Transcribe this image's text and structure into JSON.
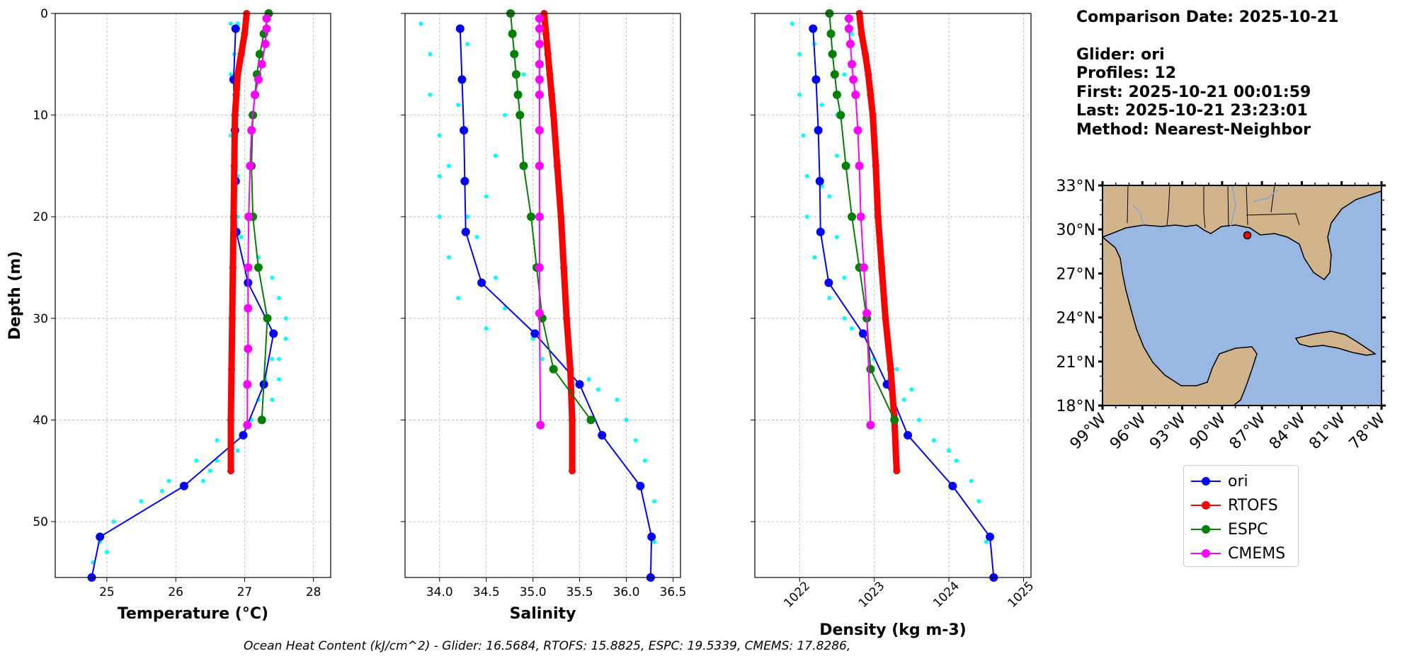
{
  "info": {
    "comparison_date": "Comparison Date: 2025-10-21",
    "glider": "Glider: ori",
    "profiles": "Profiles: 12",
    "first": "First: 2025-10-21 00:01:59",
    "last": "Last: 2025-10-21 23:23:01",
    "method": "Method: Nearest-Neighbor"
  },
  "footer_text": "Ocean Heat Content (kJ/cm^2) - Glider: 16.5684,  RTOFS: 15.8825,  ESPC: 19.5339,  CMEMS: 17.8286,",
  "colors": {
    "ori": "#0000ff",
    "RTOFS": "#ff0000",
    "ESPC": "#008000",
    "CMEMS": "#ff00ff",
    "raw": "#00ffff",
    "land": "#d2b48c",
    "ocean": "#98b7e2"
  },
  "legend": [
    {
      "name": "ori",
      "color": "#0000ff"
    },
    {
      "name": "RTOFS",
      "color": "#ff0000"
    },
    {
      "name": "ESPC",
      "color": "#008000"
    },
    {
      "name": "CMEMS",
      "color": "#ff00ff"
    }
  ],
  "chart_data": [
    {
      "type": "line",
      "xlabel": "Temperature (°C)",
      "ylabel": "Depth (m)",
      "xlim": [
        24.25,
        28.25
      ],
      "ylim": [
        55.5,
        0
      ],
      "xticks": [
        25,
        26,
        27,
        28
      ],
      "yticks": [
        0,
        10,
        20,
        30,
        40,
        50
      ],
      "grid": true,
      "raw_cloud": {
        "name": "raw glider profiles",
        "color": "#00ffff",
        "points": [
          [
            26.9,
            1
          ],
          [
            26.8,
            1
          ],
          [
            27.0,
            2
          ],
          [
            26.85,
            4
          ],
          [
            26.8,
            6
          ],
          [
            26.85,
            8
          ],
          [
            26.9,
            10
          ],
          [
            26.8,
            12
          ],
          [
            26.85,
            14
          ],
          [
            26.9,
            16
          ],
          [
            26.85,
            18
          ],
          [
            26.9,
            20
          ],
          [
            26.95,
            22
          ],
          [
            27.2,
            24
          ],
          [
            27.4,
            26
          ],
          [
            27.5,
            28
          ],
          [
            27.6,
            30
          ],
          [
            27.6,
            32
          ],
          [
            27.5,
            34
          ],
          [
            27.5,
            36
          ],
          [
            27.4,
            38
          ],
          [
            27.1,
            40
          ],
          [
            26.6,
            42
          ],
          [
            26.3,
            44
          ],
          [
            25.9,
            46
          ],
          [
            25.5,
            48
          ],
          [
            25.1,
            50
          ],
          [
            24.9,
            52
          ],
          [
            24.8,
            54
          ],
          [
            26.8,
            40
          ],
          [
            26.6,
            44
          ],
          [
            26.4,
            46
          ],
          [
            27.3,
            36
          ],
          [
            27.4,
            34
          ],
          [
            27.2,
            38
          ],
          [
            26.9,
            43
          ],
          [
            26.5,
            45
          ],
          [
            25.8,
            47
          ],
          [
            25.0,
            53
          ]
        ]
      },
      "series": [
        {
          "name": "ori",
          "color": "#0000ff",
          "x": [
            26.87,
            26.84,
            26.86,
            26.87,
            26.88,
            27.05,
            27.42,
            27.28,
            26.98,
            26.12,
            24.9,
            24.78
          ],
          "y": [
            1.5,
            6.5,
            11.5,
            16.5,
            21.5,
            26.5,
            31.5,
            36.5,
            41.5,
            46.5,
            51.5,
            55.5
          ]
        },
        {
          "name": "RTOFS",
          "color": "#ff0000",
          "x": [
            27.03,
            27.0,
            26.95,
            26.9,
            26.88,
            26.86,
            26.85,
            26.84,
            26.83,
            26.82,
            26.81,
            26.8,
            26.8
          ],
          "y": [
            0,
            2,
            4,
            6,
            8,
            10,
            15,
            20,
            25,
            30,
            35,
            40,
            45
          ]
        },
        {
          "name": "ESPC",
          "color": "#008000",
          "x": [
            27.35,
            27.28,
            27.22,
            27.18,
            27.15,
            27.12,
            27.1,
            27.12,
            27.2,
            27.33,
            27.25
          ],
          "y": [
            0,
            2,
            4,
            6,
            8,
            10,
            15,
            20,
            25,
            30,
            40
          ]
        },
        {
          "name": "CMEMS",
          "color": "#ff00ff",
          "x": [
            27.32,
            27.32,
            27.3,
            27.25,
            27.2,
            27.15,
            27.1,
            27.08,
            27.06,
            27.05,
            27.05,
            27.05,
            27.04,
            27.04
          ],
          "y": [
            0.5,
            1.5,
            3,
            5,
            6.5,
            8,
            11.5,
            15,
            20,
            25,
            29,
            33,
            36.5,
            40.5
          ]
        }
      ]
    },
    {
      "type": "line",
      "xlabel": "Salinity",
      "ylabel": "",
      "xlim": [
        33.63,
        36.58
      ],
      "ylim": [
        55.5,
        0
      ],
      "xticks": [
        34.0,
        34.5,
        35.0,
        35.5,
        36.0,
        36.5
      ],
      "yticks": [
        0,
        10,
        20,
        30,
        40,
        50
      ],
      "grid": true,
      "raw_cloud": {
        "name": "raw glider profiles",
        "color": "#00ffff",
        "points": [
          [
            33.8,
            1
          ],
          [
            33.9,
            4
          ],
          [
            33.9,
            8
          ],
          [
            34.0,
            12
          ],
          [
            34.0,
            16
          ],
          [
            34.0,
            20
          ],
          [
            34.1,
            24
          ],
          [
            34.2,
            28
          ],
          [
            34.5,
            31
          ],
          [
            35.1,
            34
          ],
          [
            35.6,
            36
          ],
          [
            35.9,
            38
          ],
          [
            36.0,
            40
          ],
          [
            36.1,
            42
          ],
          [
            36.2,
            44
          ],
          [
            36.3,
            48
          ],
          [
            36.3,
            52
          ],
          [
            34.8,
            2
          ],
          [
            34.9,
            6
          ],
          [
            34.7,
            10
          ],
          [
            34.6,
            14
          ],
          [
            34.5,
            18
          ],
          [
            34.4,
            22
          ],
          [
            34.6,
            26
          ],
          [
            35.0,
            32
          ],
          [
            35.4,
            35
          ],
          [
            35.7,
            37
          ],
          [
            34.3,
            3
          ],
          [
            34.2,
            9
          ],
          [
            34.1,
            15
          ],
          [
            34.3,
            20
          ],
          [
            34.7,
            29
          ]
        ]
      },
      "series": [
        {
          "name": "ori",
          "color": "#0000ff",
          "x": [
            34.22,
            34.24,
            34.26,
            34.27,
            34.28,
            34.45,
            35.02,
            35.5,
            35.74,
            36.15,
            36.27,
            36.26
          ],
          "y": [
            1.5,
            6.5,
            11.5,
            16.5,
            21.5,
            26.5,
            31.5,
            36.5,
            41.5,
            46.5,
            51.5,
            55.5
          ]
        },
        {
          "name": "RTOFS",
          "color": "#ff0000",
          "x": [
            35.12,
            35.14,
            35.16,
            35.18,
            35.2,
            35.22,
            35.26,
            35.3,
            35.33,
            35.36,
            35.4,
            35.42,
            35.42
          ],
          "y": [
            0,
            2,
            4,
            6,
            8,
            10,
            15,
            20,
            25,
            30,
            35,
            40,
            45
          ]
        },
        {
          "name": "ESPC",
          "color": "#008000",
          "x": [
            34.76,
            34.78,
            34.8,
            34.82,
            34.84,
            34.86,
            34.9,
            34.98,
            35.04,
            35.1,
            35.22,
            35.62
          ],
          "y": [
            0,
            2,
            4,
            6,
            8,
            10,
            15,
            20,
            25,
            30,
            35,
            40
          ]
        },
        {
          "name": "CMEMS",
          "color": "#ff00ff",
          "x": [
            35.07,
            35.07,
            35.07,
            35.07,
            35.07,
            35.07,
            35.07,
            35.07,
            35.07,
            35.07,
            35.07,
            35.08
          ],
          "y": [
            0.5,
            1.5,
            3,
            5,
            6.5,
            8,
            11.5,
            15,
            20,
            25,
            29.5,
            40.5
          ]
        }
      ]
    },
    {
      "type": "line",
      "xlabel": "Density (kg m-3)",
      "ylabel": "",
      "xlim": [
        1021.4,
        1025.1
      ],
      "ylim": [
        55.5,
        0
      ],
      "xticks": [
        1022,
        1023,
        1024,
        1025
      ],
      "yticks": [
        0,
        10,
        20,
        30,
        40,
        50
      ],
      "grid": true,
      "raw_cloud": {
        "name": "raw glider profiles",
        "color": "#00ffff",
        "points": [
          [
            1021.9,
            1
          ],
          [
            1022.0,
            4
          ],
          [
            1022.0,
            8
          ],
          [
            1022.05,
            12
          ],
          [
            1022.1,
            16
          ],
          [
            1022.1,
            20
          ],
          [
            1022.2,
            24
          ],
          [
            1022.4,
            28
          ],
          [
            1022.6,
            30
          ],
          [
            1023.0,
            34
          ],
          [
            1023.2,
            36
          ],
          [
            1023.4,
            38
          ],
          [
            1023.6,
            40
          ],
          [
            1023.8,
            42
          ],
          [
            1024.1,
            44
          ],
          [
            1024.4,
            48
          ],
          [
            1024.5,
            52
          ],
          [
            1022.7,
            2
          ],
          [
            1022.6,
            6
          ],
          [
            1022.5,
            10
          ],
          [
            1022.5,
            14
          ],
          [
            1022.4,
            18
          ],
          [
            1022.5,
            22
          ],
          [
            1022.6,
            26
          ],
          [
            1023.3,
            35
          ],
          [
            1023.5,
            37
          ],
          [
            1024.0,
            43
          ],
          [
            1024.3,
            46
          ],
          [
            1022.2,
            3
          ],
          [
            1022.3,
            9
          ],
          [
            1022.3,
            17
          ],
          [
            1022.7,
            31
          ]
        ]
      },
      "series": [
        {
          "name": "ori",
          "color": "#0000ff",
          "x": [
            1022.18,
            1022.22,
            1022.25,
            1022.27,
            1022.28,
            1022.39,
            1022.85,
            1023.17,
            1023.45,
            1024.05,
            1024.55,
            1024.6
          ],
          "y": [
            1.5,
            6.5,
            11.5,
            16.5,
            21.5,
            26.5,
            31.5,
            36.5,
            41.5,
            46.5,
            51.5,
            55.5
          ]
        },
        {
          "name": "RTOFS",
          "color": "#ff0000",
          "x": [
            1022.8,
            1022.83,
            1022.88,
            1022.92,
            1022.95,
            1022.98,
            1023.02,
            1023.05,
            1023.1,
            1023.15,
            1023.22,
            1023.27,
            1023.3
          ],
          "y": [
            0,
            2,
            4,
            6,
            8,
            10,
            15,
            20,
            25,
            30,
            35,
            40,
            45
          ]
        },
        {
          "name": "ESPC",
          "color": "#008000",
          "x": [
            1022.4,
            1022.42,
            1022.44,
            1022.47,
            1022.5,
            1022.55,
            1022.62,
            1022.7,
            1022.8,
            1022.9,
            1022.95,
            1023.27
          ],
          "y": [
            0,
            2,
            4,
            6,
            8,
            10,
            15,
            20,
            25,
            30,
            35,
            40
          ]
        },
        {
          "name": "CMEMS",
          "color": "#ff00ff",
          "x": [
            1022.66,
            1022.66,
            1022.68,
            1022.7,
            1022.72,
            1022.75,
            1022.78,
            1022.8,
            1022.82,
            1022.86,
            1022.9,
            1022.95
          ],
          "y": [
            0.5,
            1.5,
            3,
            5,
            6.5,
            8,
            11.5,
            15,
            20,
            25,
            29.5,
            40.5
          ]
        }
      ]
    }
  ],
  "map": {
    "lon_labels": [
      "99°W",
      "96°W",
      "93°W",
      "90°W",
      "87°W",
      "84°W",
      "81°W",
      "78°W"
    ],
    "lat_labels": [
      "33°N",
      "30°N",
      "27°N",
      "24°N",
      "21°N",
      "18°N"
    ],
    "lon_range": [
      -99,
      -78
    ],
    "lat_range": [
      18,
      33
    ],
    "glider_position": {
      "lon": -88.1,
      "lat": 29.6
    }
  }
}
